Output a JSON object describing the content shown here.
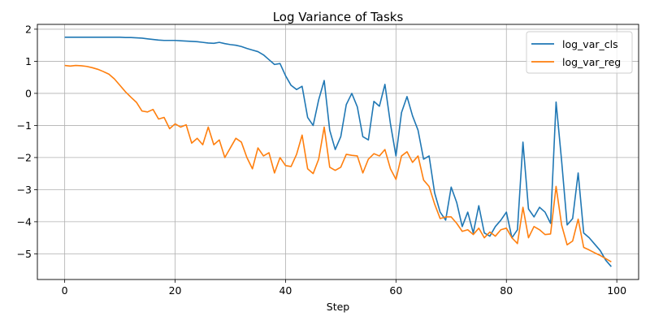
{
  "chart_data": {
    "type": "line",
    "title": "Log Variance of Tasks",
    "xlabel": "Step",
    "ylabel": "",
    "xlim": [
      -4.95,
      103.95
    ],
    "ylim": [
      -5.8,
      2.15
    ],
    "xticks": [
      0,
      20,
      40,
      60,
      80,
      100
    ],
    "yticks": [
      -5,
      -4,
      -3,
      -2,
      -1,
      0,
      1,
      2
    ],
    "grid": true,
    "legend_position": "top-right",
    "series": [
      {
        "name": "log_var_cls",
        "color": "#1f77b4",
        "x": [
          0,
          1,
          2,
          3,
          4,
          5,
          6,
          7,
          8,
          9,
          10,
          11,
          12,
          13,
          14,
          15,
          16,
          17,
          18,
          19,
          20,
          21,
          22,
          23,
          24,
          25,
          26,
          27,
          28,
          29,
          30,
          31,
          32,
          33,
          34,
          35,
          36,
          37,
          38,
          39,
          40,
          41,
          42,
          43,
          44,
          45,
          46,
          47,
          48,
          49,
          50,
          51,
          52,
          53,
          54,
          55,
          56,
          57,
          58,
          59,
          60,
          61,
          62,
          63,
          64,
          65,
          66,
          67,
          68,
          69,
          70,
          71,
          72,
          73,
          74,
          75,
          76,
          77,
          78,
          79,
          80,
          81,
          82,
          83,
          84,
          85,
          86,
          87,
          88,
          89,
          90,
          91,
          92,
          93,
          94,
          95,
          96,
          97,
          98,
          99
        ],
        "y": [
          1.75,
          1.75,
          1.75,
          1.75,
          1.75,
          1.75,
          1.75,
          1.75,
          1.75,
          1.75,
          1.75,
          1.74,
          1.74,
          1.73,
          1.72,
          1.7,
          1.68,
          1.66,
          1.65,
          1.65,
          1.65,
          1.64,
          1.63,
          1.62,
          1.61,
          1.59,
          1.57,
          1.56,
          1.59,
          1.55,
          1.52,
          1.5,
          1.46,
          1.4,
          1.35,
          1.3,
          1.2,
          1.05,
          0.9,
          0.93,
          0.55,
          0.25,
          0.12,
          0.22,
          -0.75,
          -1.0,
          -0.2,
          0.4,
          -1.15,
          -1.75,
          -1.35,
          -0.35,
          0.0,
          -0.42,
          -1.35,
          -1.45,
          -0.25,
          -0.4,
          0.28,
          -0.95,
          -1.95,
          -0.6,
          -0.1,
          -0.7,
          -1.15,
          -2.05,
          -1.95,
          -3.1,
          -3.7,
          -3.95,
          -2.92,
          -3.4,
          -4.15,
          -3.7,
          -4.35,
          -3.5,
          -4.35,
          -4.45,
          -4.15,
          -3.95,
          -3.7,
          -4.5,
          -4.25,
          -1.52,
          -3.6,
          -3.85,
          -3.55,
          -3.7,
          -4.05,
          -0.27,
          -2.1,
          -4.1,
          -3.9,
          -2.48,
          -4.35,
          -4.5,
          -4.7,
          -4.9,
          -5.2,
          -5.4
        ]
      },
      {
        "name": "log_var_reg",
        "color": "#ff7f0e",
        "x": [
          0,
          1,
          2,
          3,
          4,
          5,
          6,
          7,
          8,
          9,
          10,
          11,
          12,
          13,
          14,
          15,
          16,
          17,
          18,
          19,
          20,
          21,
          22,
          23,
          24,
          25,
          26,
          27,
          28,
          29,
          30,
          31,
          32,
          33,
          34,
          35,
          36,
          37,
          38,
          39,
          40,
          41,
          42,
          43,
          44,
          45,
          46,
          47,
          48,
          49,
          50,
          51,
          52,
          53,
          54,
          55,
          56,
          57,
          58,
          59,
          60,
          61,
          62,
          63,
          64,
          65,
          66,
          67,
          68,
          69,
          70,
          71,
          72,
          73,
          74,
          75,
          76,
          77,
          78,
          79,
          80,
          81,
          82,
          83,
          84,
          85,
          86,
          87,
          88,
          89,
          90,
          91,
          92,
          93,
          94,
          95,
          96,
          97,
          98,
          99
        ],
        "y": [
          0.87,
          0.85,
          0.87,
          0.86,
          0.84,
          0.8,
          0.75,
          0.68,
          0.6,
          0.45,
          0.25,
          0.05,
          -0.12,
          -0.28,
          -0.55,
          -0.58,
          -0.5,
          -0.8,
          -0.75,
          -1.1,
          -0.95,
          -1.05,
          -0.98,
          -1.55,
          -1.4,
          -1.6,
          -1.05,
          -1.6,
          -1.45,
          -2.0,
          -1.7,
          -1.4,
          -1.52,
          -2.0,
          -2.35,
          -1.7,
          -1.95,
          -1.85,
          -2.48,
          -2.0,
          -2.25,
          -2.28,
          -1.9,
          -1.3,
          -2.35,
          -2.5,
          -2.05,
          -1.05,
          -2.3,
          -2.4,
          -2.3,
          -1.9,
          -1.93,
          -1.95,
          -2.48,
          -2.05,
          -1.88,
          -1.95,
          -1.75,
          -2.35,
          -2.68,
          -1.95,
          -1.82,
          -2.15,
          -1.95,
          -2.7,
          -2.9,
          -3.45,
          -3.9,
          -3.85,
          -3.85,
          -4.05,
          -4.3,
          -4.25,
          -4.4,
          -4.2,
          -4.5,
          -4.32,
          -4.45,
          -4.25,
          -4.2,
          -4.5,
          -4.68,
          -3.55,
          -4.5,
          -4.15,
          -4.25,
          -4.4,
          -4.38,
          -2.9,
          -4.1,
          -4.72,
          -4.6,
          -3.92,
          -4.8,
          -4.88,
          -4.97,
          -5.05,
          -5.15,
          -5.25
        ]
      }
    ]
  }
}
